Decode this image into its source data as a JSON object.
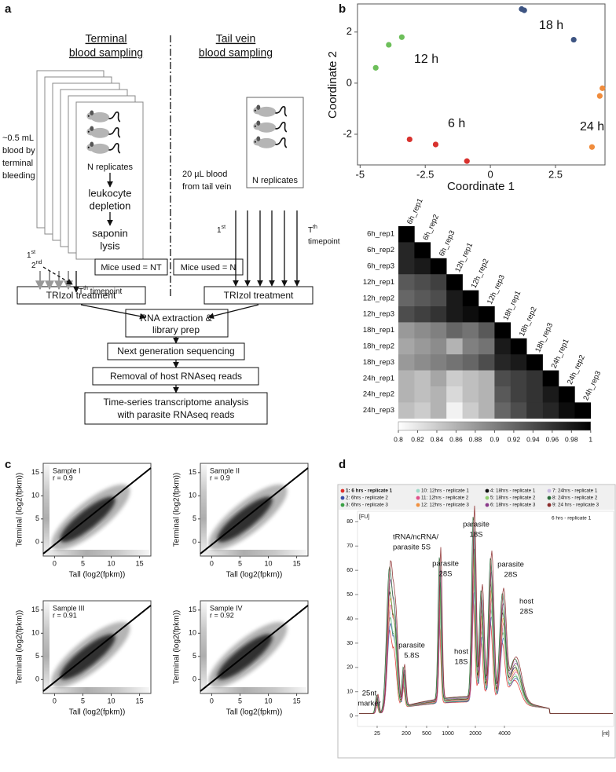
{
  "panel_labels": [
    "a",
    "b",
    "c",
    "d"
  ],
  "diagram": {
    "terminal_heading": [
      "Terminal",
      "blood sampling"
    ],
    "tail_heading": [
      "Tail vein",
      "blood sampling"
    ],
    "terminal_volume": [
      "~0.5 mL",
      "blood by",
      "terminal",
      "bleeding"
    ],
    "tail_volume": [
      "20 µL blood",
      "from tail vein"
    ],
    "replicates_terminal": "N replicates",
    "replicates_tail": "N replicates",
    "leukocyte_depletion": [
      "leukocyte",
      "depletion"
    ],
    "saponin_lysis": [
      "saponin",
      "lysis"
    ],
    "terminal_first": {
      "main": "1",
      "sup": "st"
    },
    "terminal_second": {
      "main": "2",
      "sup": "nd"
    },
    "terminal_last": {
      "main": "T",
      "sup": "th",
      "rest": " timepoint"
    },
    "tail_first": {
      "main": "1",
      "sup": "st"
    },
    "tail_last": {
      "main": "T",
      "sup": "th"
    },
    "tail_timepoint": "timepoint",
    "mice_terminal": "Mice used = NT",
    "mice_tail": "Mice used = N",
    "trizol_terminal": "TRIzol treatment",
    "trizol_tail": "TRIzol treatment",
    "pipeline": [
      [
        "RNA extraction &",
        "library prep"
      ],
      [
        "Next generation sequencing"
      ],
      [
        "Removal of host RNAseq reads"
      ],
      [
        "Time-series transcriptome analysis",
        "with parasite RNAseq reads"
      ]
    ]
  },
  "chart_data": [
    {
      "type": "scatter",
      "xlabel": "Coordinate 1",
      "ylabel": "Coordinate 2",
      "xlim": [
        -5.1,
        4.4
      ],
      "ylim": [
        -3.2,
        3.1
      ],
      "xticks": [
        -5,
        -2.5,
        0,
        2.5
      ],
      "yticks": [
        -2,
        0,
        2
      ],
      "series": [
        {
          "name": "12 h",
          "color": "#6dbf5a",
          "x": [
            -3.4,
            -3.9,
            -4.4
          ],
          "y": [
            1.8,
            1.5,
            0.6
          ]
        },
        {
          "name": "18 h",
          "color": "#3d5482",
          "x": [
            1.2,
            1.3,
            3.2
          ],
          "y": [
            2.9,
            2.85,
            1.7
          ]
        },
        {
          "name": "24 h",
          "color": "#f08c3c",
          "x": [
            4.3,
            4.2,
            3.9
          ],
          "y": [
            -0.2,
            -0.5,
            -2.5
          ]
        },
        {
          "name": "6 h",
          "color": "#d8322e",
          "x": [
            -3.1,
            -2.1,
            -0.9
          ],
          "y": [
            -2.2,
            -2.4,
            -3.05
          ]
        }
      ]
    },
    {
      "type": "heatmap",
      "labels": [
        "6h_rep1",
        "6h_rep2",
        "6h_rep3",
        "12h_rep1",
        "12h_rep2",
        "12h_rep3",
        "18h_rep1",
        "18h_rep2",
        "18h_rep3",
        "24h_rep1",
        "24h_rep2",
        "24h_rep3"
      ],
      "values": [
        [
          1
        ],
        [
          0.97,
          1
        ],
        [
          0.97,
          0.98,
          1
        ],
        [
          0.93,
          0.94,
          0.95,
          1
        ],
        [
          0.92,
          0.93,
          0.94,
          0.98,
          1
        ],
        [
          0.94,
          0.95,
          0.96,
          0.98,
          0.99,
          1
        ],
        [
          0.88,
          0.89,
          0.9,
          0.92,
          0.91,
          0.93,
          1
        ],
        [
          0.87,
          0.88,
          0.89,
          0.86,
          0.9,
          0.91,
          0.98,
          1
        ],
        [
          0.88,
          0.89,
          0.9,
          0.91,
          0.92,
          0.94,
          0.97,
          0.98,
          1
        ],
        [
          0.86,
          0.85,
          0.87,
          0.84,
          0.85,
          0.86,
          0.94,
          0.95,
          0.96,
          1
        ],
        [
          0.86,
          0.85,
          0.86,
          0.83,
          0.85,
          0.86,
          0.93,
          0.95,
          0.96,
          0.98,
          1
        ],
        [
          0.85,
          0.84,
          0.86,
          0.81,
          0.84,
          0.86,
          0.92,
          0.94,
          0.96,
          0.97,
          0.99,
          1
        ]
      ],
      "range": [
        0.8,
        1
      ],
      "colorbar_ticks": [
        0.8,
        0.82,
        0.84,
        0.86,
        0.88,
        0.9,
        0.92,
        0.94,
        0.96,
        0.98,
        1
      ]
    },
    {
      "type": "correlation",
      "xlabel": "Tall (log2(fpkm))",
      "ylabel": "Terminal (log2(fpkm))",
      "xlim": [
        -2,
        17
      ],
      "ylim": [
        -3,
        17
      ],
      "xticks": [
        0,
        5,
        10,
        15
      ],
      "yticks": [
        0,
        5,
        10,
        15
      ],
      "fit": {
        "x": [
          -2,
          17
        ],
        "y": [
          -2.5,
          16
        ]
      },
      "panels": [
        {
          "title": "Sample I",
          "stat": "r = 0.9"
        },
        {
          "title": "Sample II",
          "stat": "r = 0.9"
        },
        {
          "title": "Sample III",
          "stat": "r = 0.91"
        },
        {
          "title": "Sample IV",
          "stat": "r = 0.92"
        }
      ]
    },
    {
      "type": "electropherogram",
      "y_unit": "[FU]",
      "x_unit": "[nt]",
      "sample_label": "6 hrs - replicate 1",
      "ylim": [
        -4,
        84
      ],
      "yticks": [
        0,
        10,
        20,
        30,
        40,
        50,
        60,
        70,
        80
      ],
      "xticks": [
        25,
        200,
        500,
        1000,
        2000,
        4000
      ],
      "series": [
        {
          "name": "1: 6 hrs - replicate 1",
          "color": "#e0302a"
        },
        {
          "name": "2: 6hrs - replicate 2",
          "color": "#3b4ea8"
        },
        {
          "name": "3: 6hrs - replicate 3",
          "color": "#3aa045"
        },
        {
          "name": "10: 12hrs - replicate 1",
          "color": "#9fd9c8"
        },
        {
          "name": "11: 12hrs - replicate 2",
          "color": "#e0508a"
        },
        {
          "name": "12: 12hrs - replicate 3",
          "color": "#f09040"
        },
        {
          "name": "4: 18hrs - replicate 1",
          "color": "#111111"
        },
        {
          "name": "5: 18hrs - replicate 2",
          "color": "#90d070"
        },
        {
          "name": "6: 18hrs - replicate 3",
          "color": "#8a3a8a"
        },
        {
          "name": "7: 24hrs - replicate 1",
          "color": "#c8b8e0"
        },
        {
          "name": "8: 24hrs - replicate 2",
          "color": "#2a6a3a"
        },
        {
          "name": "9: 24 hrs - replicate 3",
          "color": "#8a2a2a"
        }
      ],
      "annotations": [
        [
          "tRNA/ncRNA/",
          "parasite 5S"
        ],
        [
          "parasite",
          "28S"
        ],
        [
          "parasite",
          "18S"
        ],
        [
          "parasite",
          "28S"
        ],
        [
          "host",
          "28S"
        ],
        [
          "parasite",
          "5.8S"
        ],
        [
          "host",
          "18S"
        ],
        [
          "25nt",
          "marker"
        ]
      ]
    }
  ]
}
